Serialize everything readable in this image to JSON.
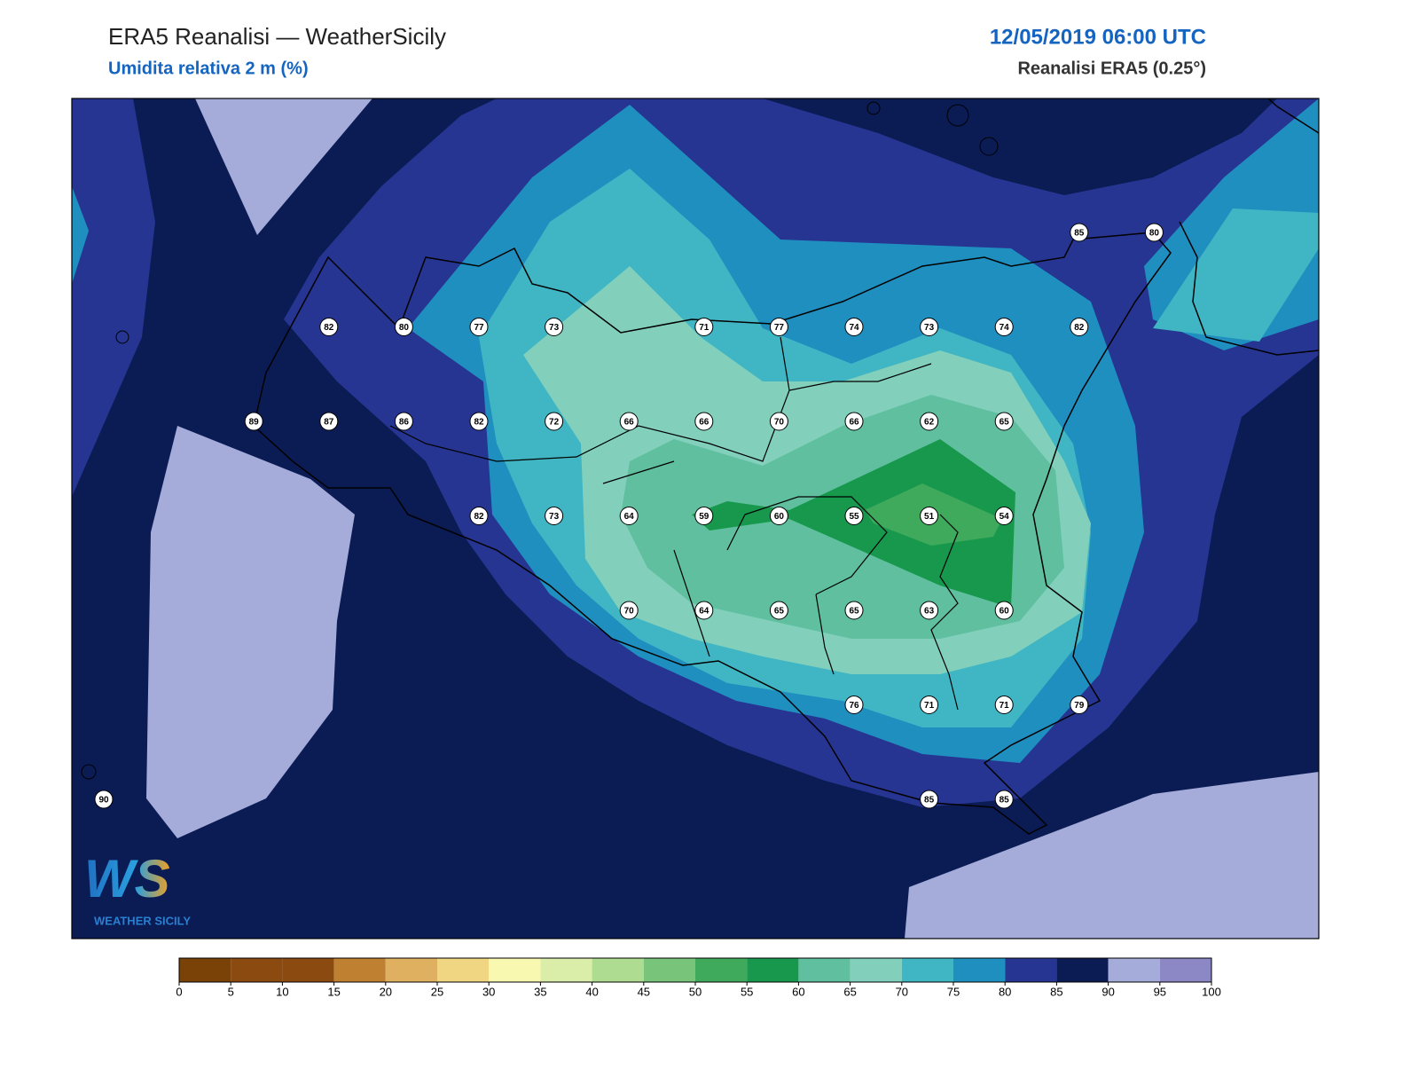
{
  "header": {
    "title": "ERA5 Reanalisi — WeatherSicily",
    "subtitle": "Umidita relativa 2 m (%)",
    "datetime": "12/05/2019 06:00 UTC",
    "source": "Reanalisi ERA5 (0.25°)"
  },
  "logo": {
    "text": "WS",
    "caption": "WEATHER SICILY"
  },
  "stations": [
    [
      null,
      null,
      null,
      null,
      null,
      null,
      null,
      null,
      null,
      null,
      null,
      null,
      null,
      85,
      80
    ],
    [
      null,
      null,
      null,
      82,
      80,
      77,
      73,
      null,
      71,
      77,
      74,
      73,
      74,
      82,
      null
    ],
    [
      null,
      null,
      89,
      87,
      86,
      82,
      72,
      66,
      66,
      70,
      66,
      62,
      65,
      null,
      null
    ],
    [
      null,
      null,
      null,
      null,
      null,
      82,
      73,
      64,
      59,
      60,
      55,
      51,
      54,
      null,
      null
    ],
    [
      null,
      null,
      null,
      null,
      null,
      null,
      null,
      70,
      64,
      65,
      65,
      63,
      60,
      null,
      null
    ],
    [
      null,
      null,
      null,
      null,
      null,
      null,
      null,
      null,
      null,
      null,
      76,
      71,
      71,
      79,
      null
    ],
    [
      90,
      null,
      null,
      null,
      null,
      null,
      null,
      null,
      null,
      null,
      null,
      85,
      85,
      null,
      null
    ]
  ],
  "colorbar": {
    "ticks": [
      0,
      5,
      10,
      15,
      20,
      25,
      30,
      35,
      40,
      45,
      50,
      55,
      60,
      65,
      70,
      75,
      80,
      85,
      90,
      95,
      100
    ],
    "colors": [
      "#7a4207",
      "#8b4a10",
      "#8b4a10",
      "#c08032",
      "#dfb060",
      "#f0d582",
      "#f8f8b0",
      "#daeeaa",
      "#aedc90",
      "#78c47a",
      "#3faa5c",
      "#17984c",
      "#5fbf9e",
      "#82d0bc",
      "#40b6c4",
      "#1f8fc0",
      "#263591",
      "#0b1c55",
      "#a5acda",
      "#8c87c5"
    ]
  }
}
